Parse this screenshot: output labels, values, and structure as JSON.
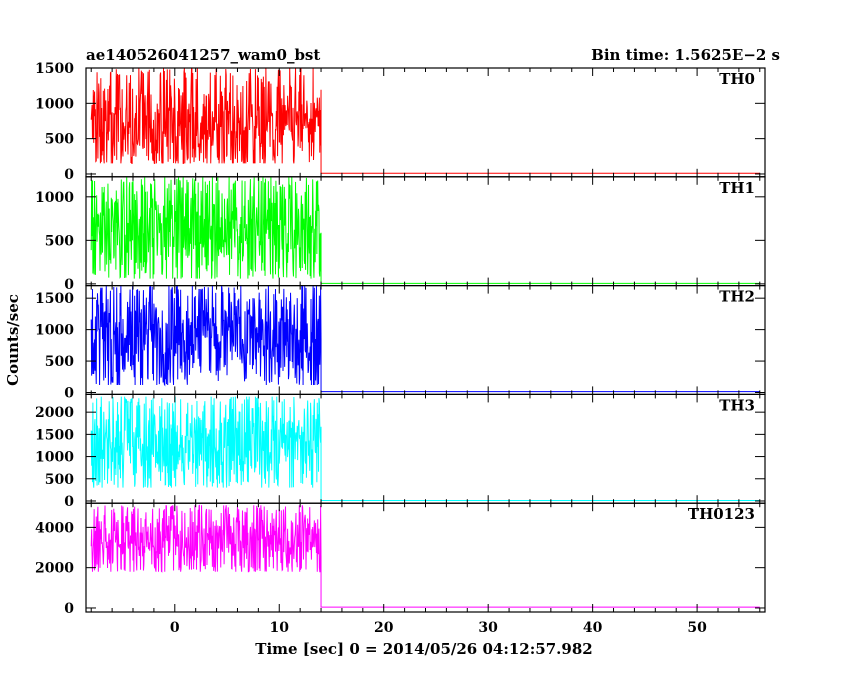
{
  "chart_data": {
    "type": "line",
    "title": "ae140526041257_wam0_bst",
    "bin_time_label": "Bin time: 1.5625E−2 s",
    "xlabel": "Time [sec] 0 = 2014/05/26 04:12:57.982",
    "ylabel": "Counts/sec",
    "xlim": [
      -8.5,
      56.5
    ],
    "x_ticks": [
      0,
      10,
      20,
      30,
      40,
      50
    ],
    "x_tick_labels": [
      "0",
      "10",
      "20",
      "30",
      "40",
      "50"
    ],
    "grid": false,
    "burst_interval": [
      -8,
      14
    ],
    "panels": [
      {
        "name": "TH0",
        "color": "#ff0000",
        "ylim": [
          -40,
          1500
        ],
        "y_ticks": [
          0,
          500,
          1000,
          1500
        ],
        "y_tick_labels": [
          "0",
          "500",
          "1000",
          "1500"
        ],
        "burst_mean": 700,
        "burst_min": 150,
        "burst_max": 1500,
        "after_level": 10
      },
      {
        "name": "TH1",
        "color": "#00ff00",
        "ylim": [
          -20,
          1230
        ],
        "y_ticks": [
          0,
          500,
          1000
        ],
        "y_tick_labels": [
          "0",
          "500",
          "1000"
        ],
        "burst_mean": 650,
        "burst_min": 60,
        "burst_max": 1230,
        "after_level": 5
      },
      {
        "name": "TH2",
        "color": "#0000ff",
        "ylim": [
          -30,
          1700
        ],
        "y_ticks": [
          0,
          500,
          1000,
          1500
        ],
        "y_tick_labels": [
          "0",
          "500",
          "1000",
          "1500"
        ],
        "burst_mean": 900,
        "burst_min": 120,
        "burst_max": 1700,
        "after_level": 15
      },
      {
        "name": "TH3",
        "color": "#00ffff",
        "ylim": [
          -50,
          2400
        ],
        "y_ticks": [
          0,
          500,
          1000,
          1500,
          2000
        ],
        "y_tick_labels": [
          "0",
          "500",
          "1000",
          "1500",
          "2000"
        ],
        "burst_mean": 1300,
        "burst_min": 300,
        "burst_max": 2350,
        "after_level": 10
      },
      {
        "name": "TH0123",
        "color": "#ff00ff",
        "ylim": [
          -200,
          5200
        ],
        "y_ticks": [
          0,
          2000,
          4000
        ],
        "y_tick_labels": [
          "0",
          "2000",
          "4000"
        ],
        "burst_mean": 3400,
        "burst_min": 1800,
        "burst_max": 5100,
        "after_level": 40
      }
    ]
  }
}
